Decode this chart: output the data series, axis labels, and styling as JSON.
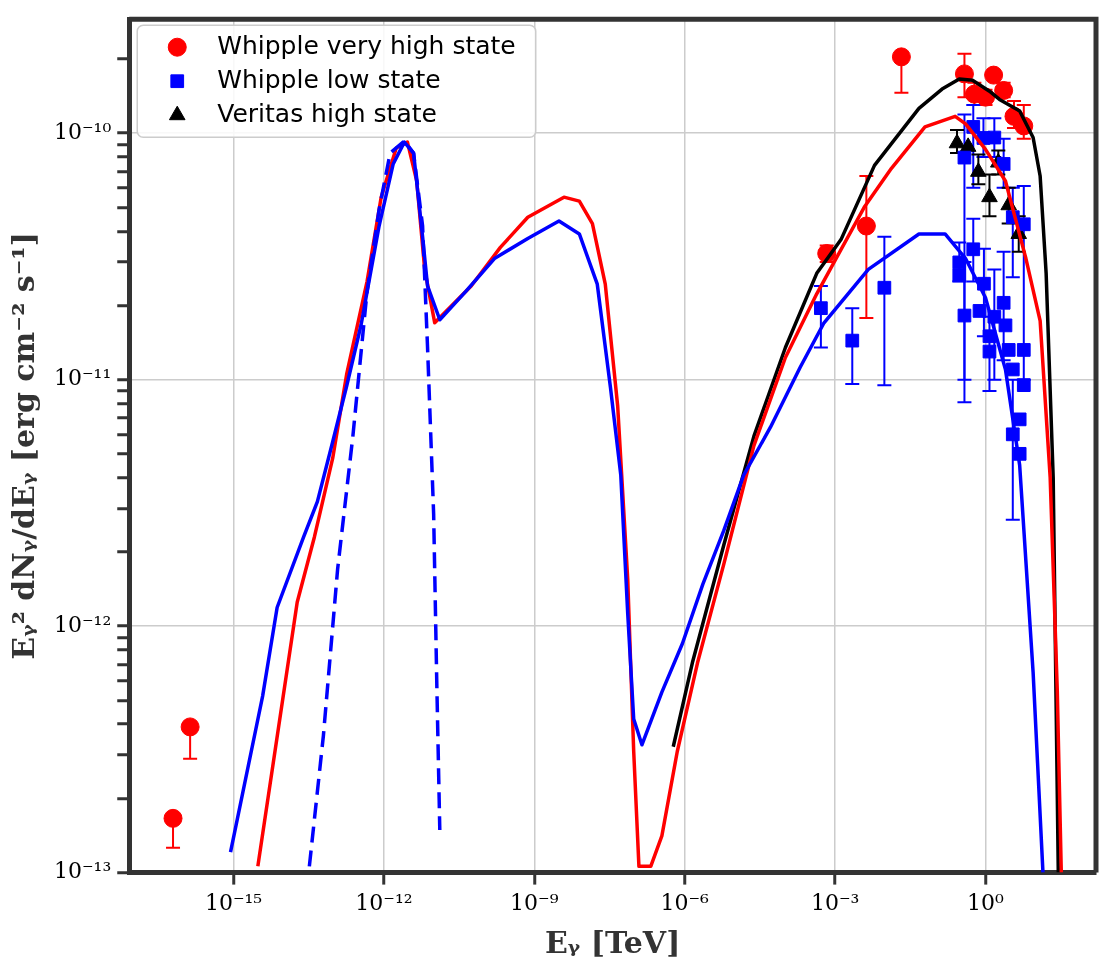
{
  "chart_data": {
    "type": "scatter",
    "xlabel": "Eᵧ [TeV]",
    "ylabel": "Eᵧ² dNᵧ/dEᵧ [erg cm⁻² s⁻¹]",
    "log": "xy",
    "grid": true,
    "legend": "top left",
    "xlim": [
      8.3e-18,
      160
    ],
    "ylim": [
      1e-13,
      2.9e-10
    ],
    "xticks": [
      {
        "value": 1e-15,
        "label": "10⁻¹⁵"
      },
      {
        "value": 1e-12,
        "label": "10⁻¹²"
      },
      {
        "value": 1e-09,
        "label": "10⁻⁹"
      },
      {
        "value": 1e-06,
        "label": "10⁻⁶"
      },
      {
        "value": 0.001,
        "label": "10⁻³"
      },
      {
        "value": 1,
        "label": "10⁰"
      }
    ],
    "yticks": [
      {
        "value": 1e-13,
        "label": "10⁻¹³"
      },
      {
        "value": 2e-13,
        "label": null
      },
      {
        "value": 3e-13,
        "label": null
      },
      {
        "value": 4e-13,
        "label": null
      },
      {
        "value": 5e-13,
        "label": null
      },
      {
        "value": 6e-13,
        "label": null
      },
      {
        "value": 7e-13,
        "label": null
      },
      {
        "value": 8e-13,
        "label": null
      },
      {
        "value": 9e-13,
        "label": null
      },
      {
        "value": 1e-12,
        "label": "10⁻¹²"
      },
      {
        "value": 2e-12,
        "label": null
      },
      {
        "value": 3e-12,
        "label": null
      },
      {
        "value": 4e-12,
        "label": null
      },
      {
        "value": 5e-12,
        "label": null
      },
      {
        "value": 6e-12,
        "label": null
      },
      {
        "value": 7e-12,
        "label": null
      },
      {
        "value": 8e-12,
        "label": null
      },
      {
        "value": 9e-12,
        "label": null
      },
      {
        "value": 1e-11,
        "label": "10⁻¹¹"
      },
      {
        "value": 2e-11,
        "label": null
      },
      {
        "value": 3e-11,
        "label": null
      },
      {
        "value": 4e-11,
        "label": null
      },
      {
        "value": 5e-11,
        "label": null
      },
      {
        "value": 6e-11,
        "label": null
      },
      {
        "value": 7e-11,
        "label": null
      },
      {
        "value": 8e-11,
        "label": null
      },
      {
        "value": 9e-11,
        "label": null
      },
      {
        "value": 1e-10,
        "label": "10⁻¹⁰"
      },
      {
        "value": 2e-10,
        "label": null
      }
    ],
    "series": [
      {
        "type": "line",
        "color": "#0000ff",
        "line_style": "dashed",
        "marker": "none",
        "x": [
          3.25e-14,
          6.2e-14,
          1.19e-13,
          2.4e-13,
          4.6e-13,
          8e-13,
          1.33e-12,
          2.55e-12,
          3.9e-12,
          5.9e-12,
          7.4e-12,
          9.8e-12,
          1.13e-11,
          1.3e-11
        ],
        "values": [
          1.06e-13,
          3.6e-13,
          1.7e-12,
          5.9e-12,
          2.28e-11,
          4.9e-11,
          8.3e-11,
          9.3e-11,
          8.3e-11,
          4.2e-11,
          1.36e-11,
          2.85e-12,
          6e-13,
          1.49e-13
        ]
      },
      {
        "type": "line",
        "color": "#0000ff",
        "line_style": "solid",
        "marker": "none",
        "x": [
          8.7e-16,
          3.8e-15,
          7.4e-15,
          2.5e-14,
          4.7e-14,
          9.5e-14,
          1.8e-13,
          3.5e-13,
          8e-13,
          1.53e-12,
          2.55e-12,
          3.9e-12,
          5.9e-12,
          7.4e-12,
          1.3e-11,
          4.3e-11,
          1.6e-10,
          7.4e-10,
          3.1e-09,
          7.9e-09,
          1.8e-08,
          3.3e-08,
          5.3e-08,
          7.3e-08,
          9.6e-08,
          1.4e-07,
          3.5e-07,
          9e-07,
          2.3e-06,
          6e-06,
          1.5e-05,
          5.1e-05,
          0.0002,
          0.00059,
          0.0046,
          0.047,
          0.156,
          0.4,
          1.0,
          2.5,
          4.8,
          8.9,
          14
        ],
        "values": [
          1.21e-13,
          5.2e-13,
          1.19e-12,
          2.3e-12,
          3.2e-12,
          5.6e-12,
          9.4e-12,
          1.67e-11,
          4.2e-11,
          7.5e-11,
          9.2e-11,
          8.3e-11,
          3.8e-11,
          2.4e-11,
          1.75e-11,
          2.28e-11,
          3.1e-11,
          3.74e-11,
          4.4e-11,
          3.9e-11,
          2.44e-11,
          9.3e-12,
          4.1e-12,
          1.12e-12,
          4.2e-13,
          3.3e-13,
          5.4e-13,
          8.5e-13,
          1.48e-12,
          2.44e-12,
          4.1e-12,
          6.4e-12,
          1.12e-11,
          1.69e-11,
          2.8e-11,
          3.9e-11,
          3.9e-11,
          3.1e-11,
          2.15e-11,
          1.1e-11,
          4.5e-12,
          6.5e-13,
          1e-13
        ]
      },
      {
        "type": "line",
        "color": "#ff0000",
        "line_style": "solid",
        "marker": "none",
        "x": [
          3.05e-15,
          1.86e-14,
          4.1e-14,
          9.5e-14,
          1.8e-13,
          4.6e-13,
          8.8e-13,
          1.76e-12,
          2.94e-12,
          4.5e-12,
          6.5e-12,
          1.03e-11,
          5.5e-11,
          2.1e-10,
          7.4e-10,
          3.9e-09,
          7.9e-09,
          1.44e-08,
          2.6e-08,
          4.6e-08,
          7.3e-08,
          9.6e-08,
          1.22e-07,
          2.1e-07,
          3.5e-07,
          7.1e-07,
          1.8e-06,
          6e-06,
          2.4e-05,
          0.000102,
          0.00043,
          0.0038,
          0.0133,
          0.062,
          0.248,
          0.4,
          1.0,
          2.5,
          6.4,
          12.3,
          19.5,
          27,
          32.5
        ],
        "values": [
          1.06e-13,
          1.25e-12,
          2.3e-12,
          4.8e-12,
          1.05e-11,
          2.5e-11,
          5.5e-11,
          8.7e-11,
          9.2e-11,
          6.4e-11,
          2.8e-11,
          1.7e-11,
          2.4e-11,
          3.44e-11,
          4.56e-11,
          5.5e-11,
          5.3e-11,
          4.3e-11,
          2.44e-11,
          7.8e-12,
          1.54e-12,
          3.1e-13,
          1.06e-13,
          1.06e-13,
          1.41e-13,
          3.1e-13,
          7.1e-13,
          1.78e-12,
          5.4e-12,
          1.23e-11,
          2.23e-11,
          5e-11,
          7.2e-11,
          1.06e-10,
          1.17e-10,
          1.09e-10,
          8.6e-11,
          6.4e-11,
          3.1e-11,
          1.73e-11,
          4e-12,
          5.5e-13,
          1e-13
        ]
      },
      {
        "type": "line",
        "color": "#000000",
        "line_style": "solid",
        "marker": "none",
        "x": [
          5.9e-07,
          1.42e-06,
          6e-06,
          2.4e-05,
          0.000102,
          0.00043,
          0.00131,
          0.0061,
          0.047,
          0.136,
          0.3,
          0.55,
          1.2,
          1.9,
          4.8,
          8.9,
          12.3,
          16.2,
          22.4,
          28.3
        ],
        "values": [
          3.24e-13,
          7.1e-13,
          2.13e-12,
          5.9e-12,
          1.35e-11,
          2.7e-11,
          3.7e-11,
          7.4e-11,
          1.26e-10,
          1.51e-10,
          1.66e-10,
          1.64e-10,
          1.48e-10,
          1.37e-10,
          1.23e-10,
          9.6e-11,
          6.7e-11,
          2.7e-11,
          4e-12,
          1e-13
        ]
      },
      {
        "name": "Whipple very high state",
        "color": "#ff0000",
        "marker": "circle",
        "x": [
          6.2e-17,
          1.36e-16,
          0.00068,
          0.0042,
          0.021,
          0.38,
          0.6,
          1.0,
          1.45,
          2.3,
          3.7,
          5.8
        ],
        "values": [
          1.66e-13,
          3.9e-13,
          3.25e-11,
          4.2e-11,
          2.04e-10,
          1.74e-10,
          1.44e-10,
          1.4e-10,
          1.72e-10,
          1.49e-10,
          1.17e-10,
          1.07e-10
        ],
        "errors": [
          [
            1.26e-13,
            1.7e-13
          ],
          [
            2.9e-13,
            4e-13
          ],
          [
            3e-11,
            3.5e-11
          ],
          [
            1.78e-11,
            6.7e-11
          ],
          [
            1.46e-10,
            2.1e-10
          ],
          [
            1.4e-10,
            2.1e-10
          ],
          [
            1.3e-10,
            1.6e-10
          ],
          [
            1.3e-10,
            1.5e-10
          ],
          null,
          [
            1.4e-10,
            1.6e-10
          ],
          [
            1.05e-10,
            1.35e-10
          ],
          [
            9.5e-11,
            1.3e-10
          ]
        ]
      },
      {
        "name": "Whipple low state",
        "color": "#0000ff",
        "marker": "square",
        "x": [
          0.00052,
          0.0022,
          0.0096,
          0.38,
          0.3,
          0.3,
          0.38,
          0.57,
          0.57,
          0.76,
          0.91,
          0.93,
          1.2,
          1.2,
          1.5,
          1.5,
          2.3,
          2.3,
          2.5,
          2.9,
          3.5,
          3.5,
          3.5,
          4.8,
          5.8,
          5.8,
          5.8,
          4.8
        ],
        "values": [
          1.95e-11,
          1.44e-11,
          2.36e-11,
          7.96e-11,
          2.99e-11,
          2.65e-11,
          1.82e-11,
          1.06e-10,
          3.38e-11,
          1.9e-11,
          9.56e-11,
          2.45e-11,
          1.3e-11,
          1.5e-11,
          9.6e-11,
          1.8e-11,
          7.5e-11,
          2.05e-11,
          1.66e-11,
          1.32e-11,
          4.56e-11,
          1.1e-11,
          6e-12,
          6.9e-12,
          4.27e-11,
          1.32e-11,
          9.5e-12,
          5e-12
        ],
        "errors": [
          [
            1.35e-11,
            2.4e-11
          ],
          [
            9.6e-12,
            1.95e-11
          ],
          [
            9.5e-12,
            3.8e-11
          ],
          [
            8.1e-12,
            1.19e-10
          ],
          [
            2.5e-11,
            3.6e-11
          ],
          null,
          [
            1e-11,
            3e-11
          ],
          [
            6e-11,
            1.3e-10
          ],
          [
            2.5e-11,
            4.5e-11
          ],
          null,
          [
            8e-11,
            1.15e-10
          ],
          [
            1.5e-11,
            3.4e-11
          ],
          [
            9e-12,
            1.8e-11
          ],
          null,
          [
            8e-11,
            1.15e-10
          ],
          [
            1e-11,
            2.8e-11
          ],
          [
            6e-11,
            9.5e-11
          ],
          [
            1.2e-11,
            3.3e-11
          ],
          null,
          null,
          [
            2.6e-11,
            6e-11
          ],
          null,
          [
            2.7e-12,
            1e-11
          ],
          null,
          [
            1e-11,
            6.1e-11
          ],
          null,
          null,
          null
        ]
      },
      {
        "name": "Veritas high state",
        "color": "#000000",
        "marker": "triangle",
        "x": [
          0.27,
          0.45,
          0.72,
          1.2,
          1.8,
          2.9,
          4.6
        ],
        "values": [
          9.1e-11,
          8.8e-11,
          6.97e-11,
          5.5e-11,
          7.6e-11,
          5.1e-11,
          3.9e-11
        ],
        "errors": [
          [
            8.3e-11,
            1.03e-10
          ],
          null,
          [
            6.2e-11,
            8.2e-11
          ],
          [
            4.6e-11,
            6.8e-11
          ],
          [
            6.8e-11,
            8.5e-11
          ],
          [
            4.3e-11,
            6e-11
          ],
          [
            3.3e-11,
            4.6e-11
          ]
        ]
      }
    ]
  }
}
